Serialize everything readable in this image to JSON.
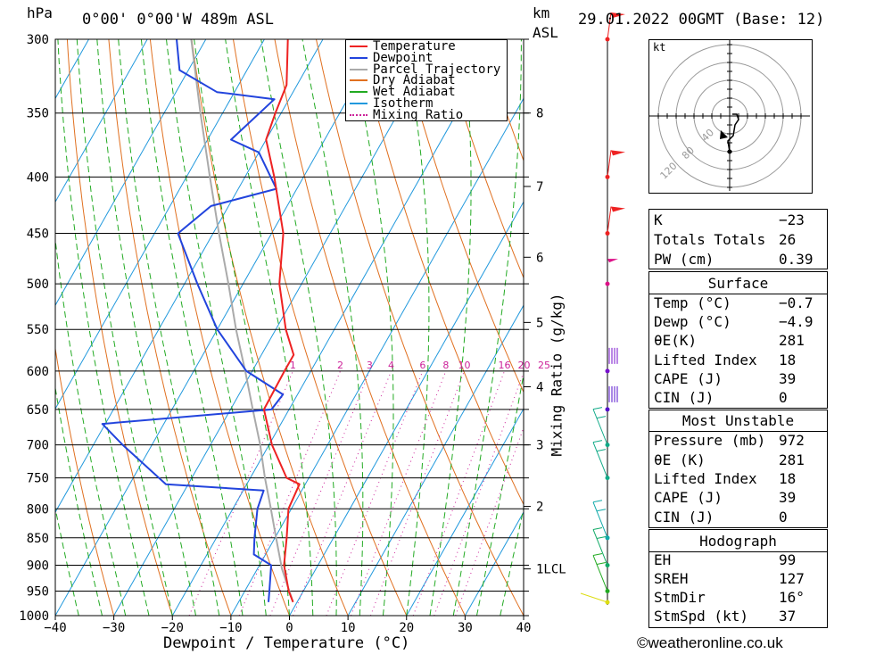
{
  "header": {
    "hpa_label": "hPa",
    "location": "0°00' 0°00'W 489m ASL",
    "km_label": "km",
    "asl_label": "ASL",
    "datetime": "29.01.2022 00GMT (Base: 12)"
  },
  "footer": {
    "copyright": "©weatheronline.co.uk"
  },
  "chart_data": {
    "type": "line",
    "chart_kind": "skew-T log-P",
    "xlabel": "Dewpoint / Temperature (°C)",
    "x_ticks": [
      -40,
      -30,
      -20,
      -10,
      0,
      10,
      20,
      30,
      40
    ],
    "x_tick_labels": [
      "−40",
      "−30",
      "−20",
      "−10",
      "0",
      "10",
      "20",
      "30",
      "40"
    ],
    "xlim": [
      -40,
      40
    ],
    "pressure_ticks": [
      300,
      350,
      400,
      450,
      500,
      550,
      600,
      650,
      700,
      750,
      800,
      850,
      900,
      950,
      1000
    ],
    "pressure_range": [
      1000,
      300
    ],
    "y_scale": "log",
    "km_ticks": [
      {
        "label": "8",
        "p": 350
      },
      {
        "label": "7",
        "p": 408
      },
      {
        "label": "6",
        "p": 473
      },
      {
        "label": "5",
        "p": 542
      },
      {
        "label": "4",
        "p": 620
      },
      {
        "label": "3",
        "p": 700
      },
      {
        "label": "2",
        "p": 796
      },
      {
        "label": "1LCL",
        "p": 907
      }
    ],
    "mixing_ratio_axis_label": "Mixing Ratio (g/kg)",
    "mixing_ratio_labels": [
      "1",
      "2",
      "3",
      "4",
      "6",
      "8",
      "10",
      "16",
      "20",
      "25"
    ],
    "mixing_ratio_values": [
      1,
      2,
      3,
      4,
      6,
      8,
      10,
      16,
      20,
      25
    ],
    "legend": [
      {
        "name": "Temperature",
        "color": "#ee2222",
        "style": "solid"
      },
      {
        "name": "Dewpoint",
        "color": "#2244dd",
        "style": "solid"
      },
      {
        "name": "Parcel Trajectory",
        "color": "#aaaaaa",
        "style": "solid"
      },
      {
        "name": "Dry Adiabat",
        "color": "#e07020",
        "style": "solid"
      },
      {
        "name": "Wet Adiabat",
        "color": "#22aa22",
        "style": "solid"
      },
      {
        "name": "Isotherm",
        "color": "#2299dd",
        "style": "solid"
      },
      {
        "name": "Mixing Ratio",
        "color": "#cc2299",
        "style": "dotted"
      }
    ],
    "legend_placement": "top-center",
    "series": [
      {
        "name": "Temperature",
        "points": [
          {
            "p": 972,
            "t": -0.7
          },
          {
            "p": 950,
            "t": -2.5
          },
          {
            "p": 900,
            "t": -5.8
          },
          {
            "p": 850,
            "t": -8.0
          },
          {
            "p": 800,
            "t": -10.5
          },
          {
            "p": 760,
            "t": -11.0
          },
          {
            "p": 750,
            "t": -13.8
          },
          {
            "p": 700,
            "t": -19.5
          },
          {
            "p": 650,
            "t": -24.3
          },
          {
            "p": 600,
            "t": -24.5
          },
          {
            "p": 580,
            "t": -24.5
          },
          {
            "p": 550,
            "t": -28.3
          },
          {
            "p": 500,
            "t": -33.8
          },
          {
            "p": 450,
            "t": -38.0
          },
          {
            "p": 400,
            "t": -45.0
          },
          {
            "p": 370,
            "t": -50.0
          },
          {
            "p": 350,
            "t": -51.0
          },
          {
            "p": 330,
            "t": -51.8
          },
          {
            "p": 300,
            "t": -56.0
          }
        ]
      },
      {
        "name": "Dewpoint",
        "points": [
          {
            "p": 972,
            "t": -4.9
          },
          {
            "p": 950,
            "t": -5.8
          },
          {
            "p": 900,
            "t": -8.0
          },
          {
            "p": 880,
            "t": -12.0
          },
          {
            "p": 850,
            "t": -13.5
          },
          {
            "p": 800,
            "t": -15.8
          },
          {
            "p": 770,
            "t": -16.5
          },
          {
            "p": 760,
            "t": -33.8
          },
          {
            "p": 700,
            "t": -45.0
          },
          {
            "p": 670,
            "t": -50.5
          },
          {
            "p": 650,
            "t": -23.0
          },
          {
            "p": 630,
            "t": -22.5
          },
          {
            "p": 600,
            "t": -31.0
          },
          {
            "p": 550,
            "t": -40.0
          },
          {
            "p": 500,
            "t": -47.8
          },
          {
            "p": 450,
            "t": -56.0
          },
          {
            "p": 425,
            "t": -53.0
          },
          {
            "p": 410,
            "t": -43.5
          },
          {
            "p": 380,
            "t": -50.0
          },
          {
            "p": 370,
            "t": -56.0
          },
          {
            "p": 340,
            "t": -52.5
          },
          {
            "p": 335,
            "t": -63.0
          },
          {
            "p": 320,
            "t": -71.5
          },
          {
            "p": 300,
            "t": -75.0
          }
        ]
      },
      {
        "name": "Parcel Trajectory",
        "points": [
          {
            "p": 972,
            "t": -0.7
          },
          {
            "p": 907,
            "t": -5.8
          },
          {
            "p": 850,
            "t": -9.8
          },
          {
            "p": 800,
            "t": -13.5
          },
          {
            "p": 750,
            "t": -17.5
          },
          {
            "p": 700,
            "t": -21.5
          },
          {
            "p": 650,
            "t": -26.2
          },
          {
            "p": 600,
            "t": -31.2
          },
          {
            "p": 550,
            "t": -36.8
          },
          {
            "p": 500,
            "t": -42.5
          },
          {
            "p": 450,
            "t": -49.0
          },
          {
            "p": 400,
            "t": -56.0
          },
          {
            "p": 350,
            "t": -63.8
          },
          {
            "p": 300,
            "t": -72.5
          }
        ]
      }
    ]
  },
  "hodograph": {
    "unit_label": "kt",
    "ring_labels": [
      "40",
      "80",
      "120"
    ]
  },
  "wind_profile": [
    {
      "p": 300,
      "color": "#ee2222"
    },
    {
      "p": 400,
      "color": "#ee2222"
    },
    {
      "p": 450,
      "color": "#ee2222"
    },
    {
      "p": 500,
      "color": "#dd1188"
    },
    {
      "p": 600,
      "color": "#7711cc"
    },
    {
      "p": 650,
      "color": "#5511cc"
    },
    {
      "p": 700,
      "color": "#11aa88"
    },
    {
      "p": 750,
      "color": "#11aa88"
    },
    {
      "p": 850,
      "color": "#11aaaa"
    },
    {
      "p": 900,
      "color": "#11aa66"
    },
    {
      "p": 950,
      "color": "#22aa22"
    },
    {
      "p": 1000,
      "color": "#dddd11"
    }
  ],
  "indices": {
    "top": [
      {
        "label": "K",
        "value": "−23"
      },
      {
        "label": "Totals Totals",
        "value": "26"
      },
      {
        "label": "PW (cm)",
        "value": "0.39"
      }
    ],
    "surface_title": "Surface",
    "surface": [
      {
        "label": "Temp (°C)",
        "value": "−0.7"
      },
      {
        "label": "Dewp (°C)",
        "value": "−4.9"
      },
      {
        "label": "θE(K)",
        "value": "281"
      },
      {
        "label": "Lifted Index",
        "value": "18"
      },
      {
        "label": "CAPE (J)",
        "value": "39"
      },
      {
        "label": "CIN (J)",
        "value": "0"
      }
    ],
    "mu_title": "Most Unstable",
    "mu": [
      {
        "label": "Pressure (mb)",
        "value": "972"
      },
      {
        "label": "θE (K)",
        "value": "281"
      },
      {
        "label": "Lifted Index",
        "value": "18"
      },
      {
        "label": "CAPE (J)",
        "value": "39"
      },
      {
        "label": "CIN (J)",
        "value": "0"
      }
    ],
    "hodo_title": "Hodograph",
    "hodo": [
      {
        "label": "EH",
        "value": "99"
      },
      {
        "label": "SREH",
        "value": "127"
      },
      {
        "label": "StmDir",
        "value": "16°"
      },
      {
        "label": "StmSpd (kt)",
        "value": "37"
      }
    ]
  },
  "colors": {
    "temperature": "#ee2222",
    "dewpoint": "#2244dd",
    "parcel": "#aaaaaa",
    "dry_adiabat": "#e07020",
    "wet_adiabat": "#22aa22",
    "isotherm": "#2299dd",
    "mixing_ratio": "#cc2299"
  }
}
